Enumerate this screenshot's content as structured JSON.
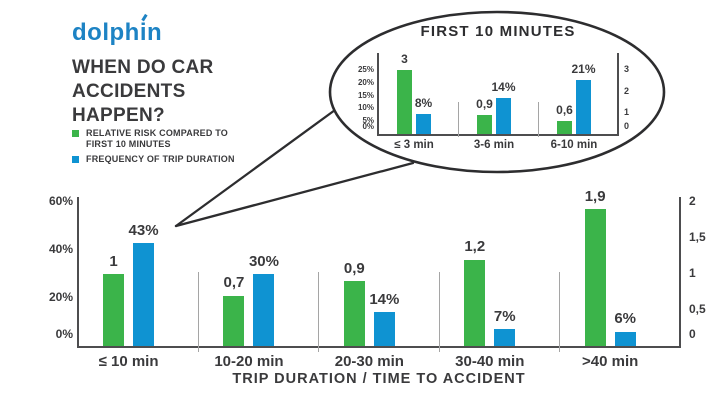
{
  "logo": {
    "part1": "dolph",
    "part2": "i",
    "part3": "n"
  },
  "title": {
    "lines": [
      "WHEN DO CAR",
      "ACCIDENTS",
      "HAPPEN?"
    ]
  },
  "legend": {
    "items": [
      {
        "color": "#3bb44a",
        "lines": [
          "RELATIVE RISK COMPARED TO",
          "FIRST 10 MINUTES"
        ]
      },
      {
        "color": "#0f93d2",
        "lines": [
          "FREQUENCY OF TRIP DURATION"
        ]
      }
    ]
  },
  "colors": {
    "green": "#3bb44a",
    "blue": "#0f93d2",
    "text": "#3a3a3c",
    "axis": "#4d4d4f",
    "separator": "#a5a5a5",
    "balloon_stroke": "#2d2d2f",
    "logo_blue": "#1d83c4"
  },
  "chart_data": [
    {
      "id": "main",
      "type": "bar",
      "title": "",
      "xlabel": "TRIP DURATION / TIME TO ACCIDENT",
      "categories": [
        "≤ 10 min",
        "10-20 min",
        "20-30 min",
        "30-40 min",
        ">40 min"
      ],
      "left_axis": {
        "max": 60,
        "ticks": [
          {
            "value": 0,
            "label": "0%"
          },
          {
            "value": 20,
            "label": "20%"
          },
          {
            "value": 40,
            "label": "40%"
          },
          {
            "value": 60,
            "label": "60%"
          }
        ]
      },
      "right_axis": {
        "max": 2,
        "ticks": [
          {
            "value": 0,
            "label": "0"
          },
          {
            "value": 0.5,
            "label": "0,5"
          },
          {
            "value": 1,
            "label": "1"
          },
          {
            "value": 1.5,
            "label": "1,5"
          },
          {
            "value": 2,
            "label": "2"
          }
        ]
      },
      "series": [
        {
          "name": "RELATIVE RISK COMPARED TO FIRST 10 MINUTES",
          "axis": "right",
          "color": "#3bb44a",
          "values": [
            1,
            0.7,
            0.9,
            1.2,
            1.9
          ],
          "labels": [
            "1",
            "0,7",
            "0,9",
            "1,2",
            "1,9"
          ]
        },
        {
          "name": "FREQUENCY OF TRIP DURATION",
          "axis": "left",
          "color": "#0f93d2",
          "values": [
            43,
            30,
            14,
            7,
            6
          ],
          "labels": [
            "43%",
            "30%",
            "14%",
            "7%",
            "6%"
          ]
        }
      ],
      "legend_position": "top-left",
      "grid": false
    },
    {
      "id": "inset",
      "type": "bar",
      "title": "FIRST 10 MINUTES",
      "xlabel": "",
      "categories": [
        "≤ 3 min",
        "3-6 min",
        "6-10 min"
      ],
      "left_axis": {
        "max": 25,
        "ticks": [
          {
            "value": 0,
            "label": "0%"
          },
          {
            "value": 5,
            "label": "5%"
          },
          {
            "value": 10,
            "label": "10%"
          },
          {
            "value": 15,
            "label": "15%"
          },
          {
            "value": 20,
            "label": "20%"
          },
          {
            "value": 25,
            "label": "25%"
          }
        ]
      },
      "right_axis": {
        "max": 3,
        "ticks": [
          {
            "value": 0,
            "label": "0"
          },
          {
            "value": 1,
            "label": "1"
          },
          {
            "value": 2,
            "label": "2"
          },
          {
            "value": 3,
            "label": "3"
          }
        ]
      },
      "series": [
        {
          "name": "RELATIVE RISK COMPARED TO FIRST 10 MINUTES",
          "axis": "right",
          "color": "#3bb44a",
          "values": [
            3,
            0.9,
            0.6
          ],
          "labels": [
            "3",
            "0,9",
            "0,6"
          ]
        },
        {
          "name": "FREQUENCY OF TRIP DURATION",
          "axis": "left",
          "color": "#0f93d2",
          "values": [
            8,
            14,
            21
          ],
          "labels": [
            "8%",
            "14%",
            "21%"
          ]
        }
      ],
      "grid": false
    }
  ]
}
